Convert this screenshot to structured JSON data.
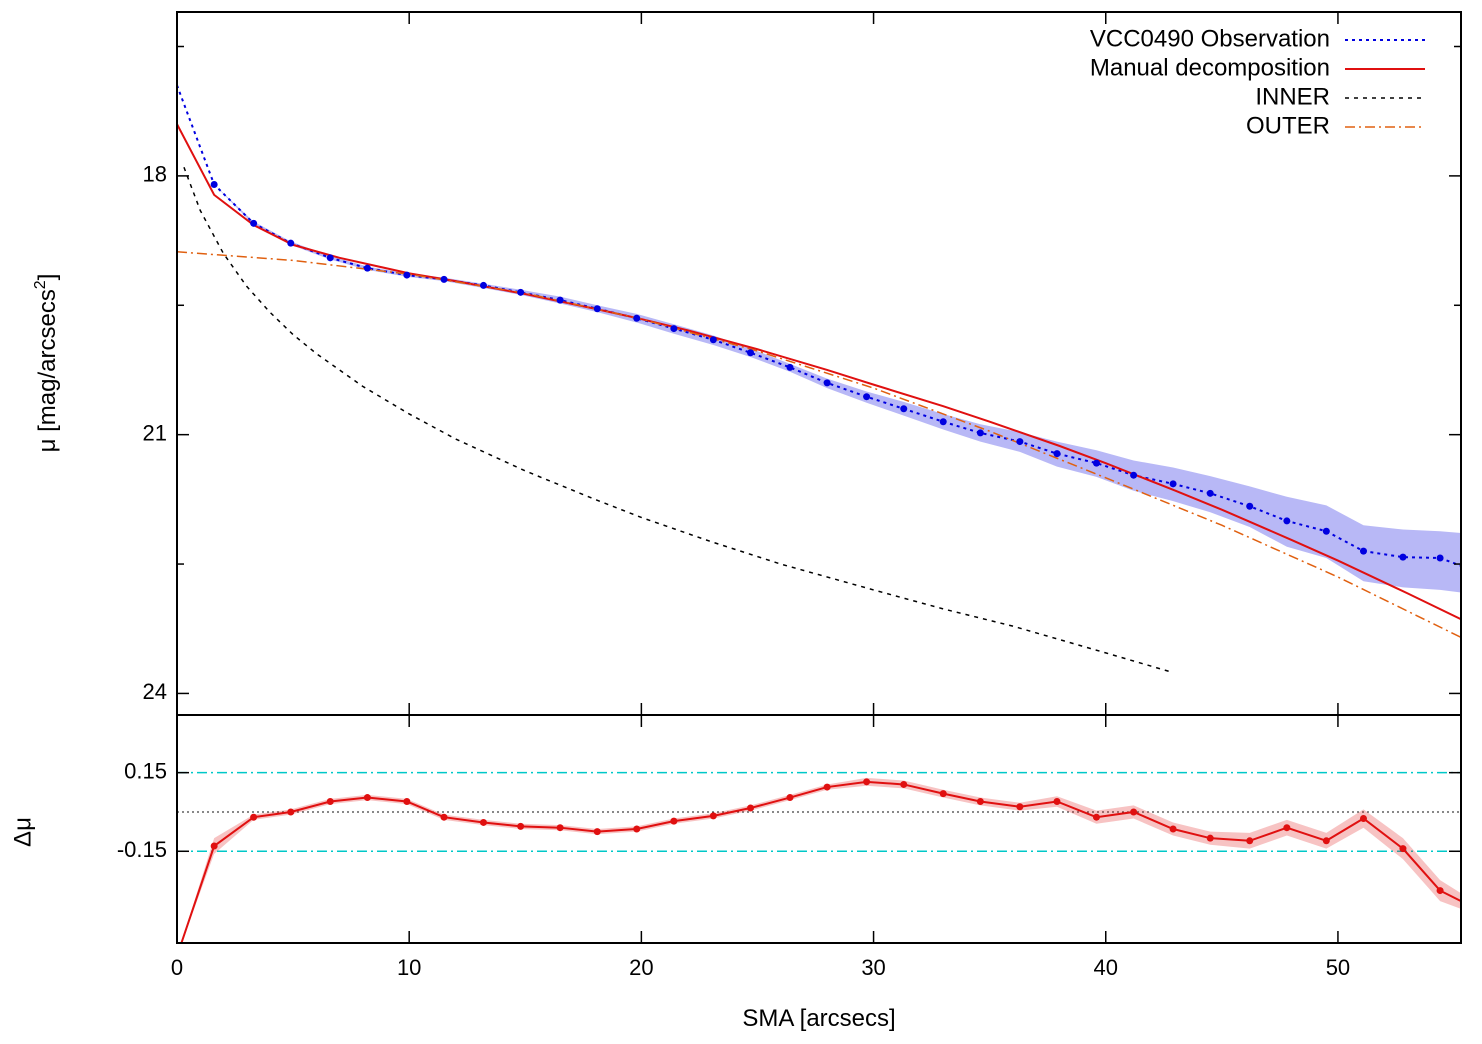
{
  "chart_data": [
    {
      "type": "line",
      "panel": "top",
      "xlim": [
        0,
        55.3
      ],
      "ylim": [
        16.1,
        24.25
      ],
      "y_inverted": true,
      "yticks": [
        18,
        21,
        24
      ],
      "ytick_labels": [
        "18",
        "21",
        "24"
      ],
      "xticks": [
        0,
        10,
        20,
        30,
        40,
        50
      ],
      "ylabel": "μ [mag/arcsecs",
      "ylabel_sup": "2",
      "ylabel_end": "]",
      "legend_position": "top-right",
      "series": [
        {
          "name": "VCC0490 Observation",
          "color": "#0000e0",
          "style": "dotted-with-points",
          "x": [
            0,
            1.6,
            3.3,
            4.9,
            6.6,
            8.2,
            9.9,
            11.5,
            13.2,
            14.8,
            16.5,
            18.1,
            19.8,
            21.4,
            23.1,
            24.7,
            26.4,
            28.0,
            29.7,
            31.3,
            33.0,
            34.6,
            36.3,
            37.9,
            39.6,
            41.2,
            42.9,
            44.5,
            46.2,
            47.8,
            49.5,
            51.1,
            52.8,
            54.4,
            55.3
          ],
          "y": [
            16.95,
            18.1,
            18.55,
            18.78,
            18.95,
            19.07,
            19.15,
            19.2,
            19.27,
            19.35,
            19.44,
            19.54,
            19.65,
            19.77,
            19.9,
            20.05,
            20.22,
            20.4,
            20.56,
            20.7,
            20.85,
            20.98,
            21.08,
            21.22,
            21.33,
            21.47,
            21.57,
            21.68,
            21.83,
            22.0,
            22.12,
            22.35,
            22.42,
            22.43,
            22.52
          ],
          "band_lower": [
            16.95,
            18.1,
            18.53,
            18.76,
            18.93,
            19.05,
            19.13,
            19.18,
            19.25,
            19.32,
            19.4,
            19.5,
            19.6,
            19.72,
            19.85,
            20.0,
            20.18,
            20.35,
            20.5,
            20.62,
            20.76,
            20.88,
            20.97,
            21.08,
            21.18,
            21.3,
            21.38,
            21.48,
            21.6,
            21.72,
            21.82,
            22.05,
            22.1,
            22.12,
            22.14
          ],
          "band_upper": [
            16.95,
            18.1,
            18.57,
            18.8,
            18.97,
            19.09,
            19.17,
            19.22,
            19.3,
            19.38,
            19.48,
            19.58,
            19.7,
            19.83,
            19.96,
            20.1,
            20.27,
            20.46,
            20.63,
            20.78,
            20.94,
            21.08,
            21.2,
            21.37,
            21.49,
            21.65,
            21.77,
            21.9,
            22.07,
            22.3,
            22.43,
            22.7,
            22.77,
            22.8,
            22.83
          ]
        },
        {
          "name": "Manual decomposition",
          "color": "#e01010",
          "style": "solid",
          "x": [
            0,
            1.6,
            3.3,
            5,
            7,
            10,
            12,
            15,
            18,
            20,
            22,
            25,
            28,
            30,
            33,
            35,
            38,
            40,
            43,
            45,
            48,
            50,
            53,
            55.3
          ],
          "y": [
            17.4,
            18.22,
            18.57,
            18.8,
            18.95,
            19.13,
            19.22,
            19.37,
            19.54,
            19.66,
            19.79,
            20.01,
            20.25,
            20.42,
            20.67,
            20.85,
            21.13,
            21.33,
            21.65,
            21.87,
            22.22,
            22.46,
            22.84,
            23.14
          ]
        },
        {
          "name": "INNER",
          "color": "#000000",
          "style": "dashed",
          "x": [
            0.3,
            1,
            2,
            3,
            4,
            5,
            6,
            8,
            10,
            12,
            15,
            18,
            20,
            23,
            26,
            30,
            33,
            36,
            40,
            42.8
          ],
          "y": [
            17.9,
            18.4,
            18.9,
            19.28,
            19.58,
            19.84,
            20.06,
            20.44,
            20.76,
            21.05,
            21.42,
            21.75,
            21.96,
            22.24,
            22.5,
            22.8,
            23.02,
            23.22,
            23.53,
            23.75
          ]
        },
        {
          "name": "OUTER",
          "color": "#e06010",
          "style": "dash-dot",
          "x": [
            0,
            5,
            10,
            15,
            20,
            25,
            30,
            35,
            40,
            45,
            50,
            55.3
          ],
          "y": [
            18.88,
            18.98,
            19.14,
            19.36,
            19.66,
            20.03,
            20.46,
            20.96,
            21.5,
            22.05,
            22.65,
            23.35
          ]
        }
      ]
    },
    {
      "type": "line",
      "panel": "bottom",
      "xlim": [
        0,
        55.3
      ],
      "ylim": [
        -0.5,
        0.37
      ],
      "yticks": [
        0.15,
        -0.15
      ],
      "ytick_labels": [
        "0.15",
        "-0.15"
      ],
      "xticks": [
        0,
        10,
        20,
        30,
        40,
        50
      ],
      "xtick_labels": [
        "0",
        "10",
        "20",
        "30",
        "40",
        "50"
      ],
      "xlabel": "SMA [arcsecs]",
      "ylabel": "Δμ",
      "reference_lines": [
        {
          "y": 0.15,
          "color": "#00c8c8",
          "style": "dash-dot"
        },
        {
          "y": -0.15,
          "color": "#00c8c8",
          "style": "dash-dot"
        },
        {
          "y": 0,
          "color": "#404040",
          "style": "dotted"
        }
      ],
      "series": [
        {
          "name": "",
          "color": "#e01010",
          "style": "solid-with-points",
          "x": [
            0,
            1.6,
            3.3,
            4.9,
            6.6,
            8.2,
            9.9,
            11.5,
            13.2,
            14.8,
            16.5,
            18.1,
            19.8,
            21.4,
            23.1,
            24.7,
            26.4,
            28.0,
            29.7,
            31.3,
            33.0,
            34.6,
            36.3,
            37.9,
            39.6,
            41.2,
            42.9,
            44.5,
            46.2,
            47.8,
            49.5,
            51.1,
            52.8,
            54.4,
            55.3
          ],
          "y": [
            -0.55,
            -0.13,
            -0.02,
            0.0,
            0.04,
            0.055,
            0.04,
            -0.02,
            -0.04,
            -0.055,
            -0.06,
            -0.075,
            -0.065,
            -0.035,
            -0.015,
            0.015,
            0.055,
            0.095,
            0.115,
            0.105,
            0.07,
            0.04,
            0.02,
            0.04,
            -0.02,
            0.0,
            -0.065,
            -0.1,
            -0.11,
            -0.06,
            -0.11,
            -0.025,
            -0.14,
            -0.3,
            -0.34
          ],
          "band_lower": [
            -0.55,
            -0.16,
            -0.03,
            -0.01,
            0.03,
            0.045,
            0.03,
            -0.03,
            -0.05,
            -0.065,
            -0.07,
            -0.085,
            -0.075,
            -0.045,
            -0.025,
            0.005,
            0.045,
            0.085,
            0.1,
            0.09,
            0.055,
            0.025,
            0.005,
            0.02,
            -0.045,
            -0.025,
            -0.09,
            -0.125,
            -0.14,
            -0.09,
            -0.14,
            -0.06,
            -0.18,
            -0.34,
            -0.37
          ],
          "band_upper": [
            -0.55,
            -0.1,
            -0.01,
            0.01,
            0.05,
            0.065,
            0.05,
            -0.01,
            -0.03,
            -0.045,
            -0.05,
            -0.065,
            -0.055,
            -0.025,
            -0.005,
            0.025,
            0.065,
            0.105,
            0.13,
            0.12,
            0.085,
            0.055,
            0.035,
            0.06,
            0.005,
            0.025,
            -0.04,
            -0.075,
            -0.08,
            -0.03,
            -0.08,
            0.01,
            -0.1,
            -0.26,
            -0.31
          ]
        }
      ]
    }
  ]
}
